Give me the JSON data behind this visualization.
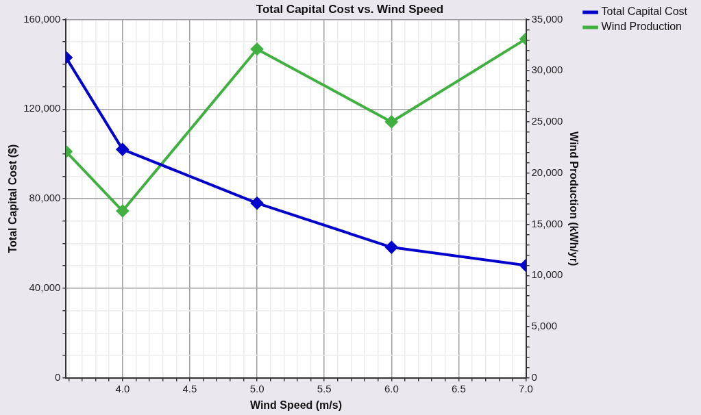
{
  "chart_data": {
    "type": "line",
    "title": "Total Capital Cost vs. Wind Speed",
    "xlabel": "Wind Speed (m/s)",
    "ylabel": "Total Capital Cost ($)",
    "y2label": "Wind Production (kWh/yr)",
    "x": [
      3.58,
      4,
      5,
      6,
      7
    ],
    "series": [
      {
        "name": "Total Capital Cost",
        "color": "#0000cc",
        "values": [
          143000,
          102000,
          78000,
          58300,
          50200
        ]
      },
      {
        "name": "Wind Production",
        "color": "#40b040",
        "axis": "y2",
        "values": [
          22100,
          16300,
          32100,
          25000,
          33100
        ]
      }
    ],
    "xlim": [
      3.58,
      7
    ],
    "xticks": [
      {
        "value": 3.6,
        "label": null
      },
      {
        "value": 3.7,
        "label": null
      },
      {
        "value": 3.8,
        "label": null
      },
      {
        "value": 3.9,
        "label": null
      },
      {
        "value": 4,
        "label": "4.0"
      },
      {
        "value": 4.1,
        "label": null
      },
      {
        "value": 4.2,
        "label": null
      },
      {
        "value": 4.3,
        "label": null
      },
      {
        "value": 4.4,
        "label": null
      },
      {
        "value": 4.5,
        "label": "4.5"
      },
      {
        "value": 4.6,
        "label": null
      },
      {
        "value": 4.7,
        "label": null
      },
      {
        "value": 4.8,
        "label": null
      },
      {
        "value": 4.9,
        "label": null
      },
      {
        "value": 5,
        "label": "5.0"
      },
      {
        "value": 5.1,
        "label": null
      },
      {
        "value": 5.2,
        "label": null
      },
      {
        "value": 5.3,
        "label": null
      },
      {
        "value": 5.4,
        "label": null
      },
      {
        "value": 5.5,
        "label": "5.5"
      },
      {
        "value": 5.6,
        "label": null
      },
      {
        "value": 5.7,
        "label": null
      },
      {
        "value": 5.8,
        "label": null
      },
      {
        "value": 5.9,
        "label": null
      },
      {
        "value": 6,
        "label": "6.0"
      },
      {
        "value": 6.1,
        "label": null
      },
      {
        "value": 6.2,
        "label": null
      },
      {
        "value": 6.3,
        "label": null
      },
      {
        "value": 6.4,
        "label": null
      },
      {
        "value": 6.5,
        "label": "6.5"
      },
      {
        "value": 6.6,
        "label": null
      },
      {
        "value": 6.7,
        "label": null
      },
      {
        "value": 6.8,
        "label": null
      },
      {
        "value": 6.9,
        "label": null
      },
      {
        "value": 7,
        "label": "7.0"
      }
    ],
    "ylim": [
      0,
      160000
    ],
    "yticks": [
      0,
      {
        "value": 10000,
        "label": null
      },
      {
        "value": 20000,
        "label": null
      },
      {
        "value": 30000,
        "label": null
      },
      {
        "value": 40000,
        "label": "40,000"
      },
      {
        "value": 50000,
        "label": null
      },
      {
        "value": 60000,
        "label": null
      },
      {
        "value": 70000,
        "label": null
      },
      {
        "value": 80000,
        "label": "80,000"
      },
      {
        "value": 90000,
        "label": null
      },
      {
        "value": 100000,
        "label": null
      },
      {
        "value": 110000,
        "label": null
      },
      {
        "value": 120000,
        "label": "120,000"
      },
      {
        "value": 130000,
        "label": null
      },
      {
        "value": 140000,
        "label": null
      },
      {
        "value": 150000,
        "label": null
      },
      {
        "value": 160000,
        "label": "160,000"
      }
    ],
    "y2lim": [
      0,
      35000
    ],
    "y2ticks": [
      0,
      {
        "value": 1000,
        "label": null
      },
      {
        "value": 2000,
        "label": null
      },
      {
        "value": 3000,
        "label": null
      },
      {
        "value": 4000,
        "label": null
      },
      {
        "value": 5000,
        "label": "5,000"
      },
      {
        "value": 6000,
        "label": null
      },
      {
        "value": 7000,
        "label": null
      },
      {
        "value": 8000,
        "label": null
      },
      {
        "value": 9000,
        "label": null
      },
      {
        "value": 10000,
        "label": "10,000"
      },
      {
        "value": 11000,
        "label": null
      },
      {
        "value": 12000,
        "label": null
      },
      {
        "value": 13000,
        "label": null
      },
      {
        "value": 14000,
        "label": null
      },
      {
        "value": 15000,
        "label": "15,000"
      },
      {
        "value": 16000,
        "label": null
      },
      {
        "value": 17000,
        "label": null
      },
      {
        "value": 18000,
        "label": null
      },
      {
        "value": 19000,
        "label": null
      },
      {
        "value": 20000,
        "label": "20,000"
      },
      {
        "value": 21000,
        "label": null
      },
      {
        "value": 22000,
        "label": null
      },
      {
        "value": 23000,
        "label": null
      },
      {
        "value": 24000,
        "label": null
      },
      {
        "value": 25000,
        "label": "25,000"
      },
      {
        "value": 26000,
        "label": null
      },
      {
        "value": 27000,
        "label": null
      },
      {
        "value": 28000,
        "label": null
      },
      {
        "value": 29000,
        "label": null
      },
      {
        "value": 30000,
        "label": "30,000"
      },
      {
        "value": 31000,
        "label": null
      },
      {
        "value": 32000,
        "label": null
      },
      {
        "value": 33000,
        "label": null
      },
      {
        "value": 34000,
        "label": null
      },
      {
        "value": 35000,
        "label": "35,000"
      }
    ],
    "grid": true,
    "legend": "top right",
    "marker": "diamond",
    "line_style": "solid"
  }
}
